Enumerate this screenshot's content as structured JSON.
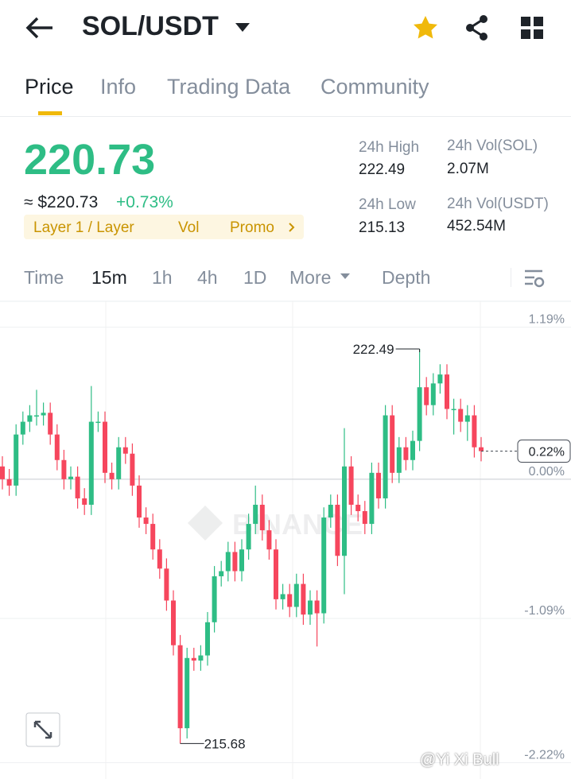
{
  "header": {
    "pair": "SOL/USDT"
  },
  "tabs": [
    "Price",
    "Info",
    "Trading Data",
    "Community"
  ],
  "ticker": {
    "price": "220.73",
    "approx": "≈ $220.73",
    "change": "+0.73%",
    "tags": [
      "Layer 1 / Layer",
      "Vol",
      "Promo"
    ],
    "stats": [
      {
        "label": "24h High",
        "value": "222.49"
      },
      {
        "label": "24h Vol(SOL)",
        "value": "2.07M"
      },
      {
        "label": "24h Low",
        "value": "215.13"
      },
      {
        "label": "24h Vol(USDT)",
        "value": "452.54M"
      }
    ]
  },
  "intervals": [
    "Time",
    "15m",
    "1h",
    "4h",
    "1D",
    "More",
    "Depth"
  ],
  "chart": {
    "type": "candlestick",
    "yticks": [
      {
        "value": 1.19,
        "label": "1.19%"
      },
      {
        "value": 0,
        "label": "0.00%"
      },
      {
        "value": -1.09,
        "label": "-1.09%"
      },
      {
        "value": -2.22,
        "label": "-2.22%"
      }
    ],
    "ylim": [
      -2.36,
      1.3
    ],
    "open": [
      0.1,
      0,
      -0.05,
      0.35,
      0.45,
      0.5,
      0.5,
      0.52,
      0.35,
      0.15,
      0,
      0.02,
      -0.15,
      -0.2,
      0.45,
      0.45,
      0.05,
      0,
      0.25,
      0.2,
      -0.05,
      -0.3,
      -0.35,
      -0.55,
      -0.7,
      -0.95,
      -1.3,
      -1.95,
      -1.4,
      -1.42,
      -1.38,
      -1.12,
      -0.76,
      -0.72,
      -0.57,
      -0.72,
      -0.55,
      -0.35,
      -0.2,
      -0.4,
      -0.55,
      -0.94,
      -0.9,
      -1,
      -0.82,
      -1.06,
      -0.95,
      -1.05,
      -0.3,
      -0.2,
      -0.6,
      0.1,
      -0.2,
      -0.25,
      -0.35,
      0.05,
      -0.15,
      0.5,
      0.05,
      0.25,
      0.15,
      0.3,
      0.72,
      0.58,
      0.75,
      0.82,
      0.55,
      0.55,
      0.45,
      0.5,
      0.25
    ],
    "high": [
      0.18,
      0.08,
      0.43,
      0.53,
      0.58,
      0.7,
      0.6,
      0.6,
      0.43,
      0.23,
      0.1,
      0.1,
      -0.07,
      0.73,
      0.53,
      0.53,
      0.13,
      0.33,
      0.33,
      0.28,
      0.03,
      -0.22,
      -0.27,
      -0.47,
      -0.62,
      -0.87,
      -1.22,
      -1.32,
      -1.32,
      -1.3,
      -1.04,
      -0.68,
      -0.64,
      -0.49,
      -0.49,
      -0.47,
      -0.27,
      -0.05,
      -0.12,
      -0.32,
      -0.47,
      -0.82,
      -0.82,
      -0.74,
      -0.74,
      -0.87,
      -0.87,
      -0.22,
      -0.12,
      -0.12,
      0.4,
      0.18,
      -0.12,
      -0.17,
      0.13,
      0.13,
      0.58,
      0.58,
      0.33,
      0.33,
      0.38,
      1.02,
      0.8,
      0.83,
      0.9,
      0.9,
      0.63,
      0.63,
      0.58,
      0.58,
      0.33
    ],
    "low": [
      -0.08,
      -0.13,
      -0.13,
      0.27,
      0.37,
      0.42,
      0.42,
      0.27,
      0.07,
      -0.08,
      -0.08,
      -0.23,
      -0.28,
      -0.28,
      0.37,
      -0.03,
      -0.08,
      -0.08,
      0.12,
      -0.13,
      -0.38,
      -0.43,
      -0.63,
      -0.78,
      -1.03,
      -1.38,
      -2.07,
      -2.03,
      -1.5,
      -1.5,
      -1.46,
      -1.2,
      -0.84,
      -0.8,
      -0.8,
      -0.8,
      -0.63,
      -0.43,
      -0.48,
      -0.63,
      -1.02,
      -1.02,
      -1.08,
      -1.08,
      -1.14,
      -1.14,
      -1.31,
      -1.13,
      -0.38,
      -0.68,
      -0.9,
      -0.28,
      -0.33,
      -0.43,
      -0.43,
      -0.23,
      -0.23,
      -0.03,
      -0.03,
      0.07,
      0.07,
      0.22,
      0.5,
      0.5,
      0.67,
      0.47,
      0.35,
      0.37,
      0.3,
      0.17,
      0.14
    ],
    "close": [
      0,
      -0.05,
      0.35,
      0.45,
      0.5,
      0.5,
      0.52,
      0.35,
      0.15,
      0,
      0.02,
      -0.15,
      -0.2,
      0.45,
      0.45,
      0.05,
      0,
      0.25,
      0.2,
      -0.05,
      -0.3,
      -0.35,
      -0.55,
      -0.7,
      -0.95,
      -1.3,
      -1.95,
      -1.4,
      -1.42,
      -1.38,
      -1.12,
      -0.76,
      -0.72,
      -0.57,
      -0.72,
      -0.55,
      -0.35,
      -0.2,
      -0.4,
      -0.55,
      -0.94,
      -0.9,
      -1,
      -0.82,
      -1.06,
      -0.95,
      -1.05,
      -0.3,
      -0.2,
      -0.6,
      0.1,
      -0.2,
      -0.25,
      -0.35,
      0.05,
      -0.15,
      0.5,
      0.05,
      0.25,
      0.15,
      0.3,
      0.72,
      0.58,
      0.75,
      0.82,
      0.55,
      0.55,
      0.45,
      0.5,
      0.25,
      0.22
    ],
    "up_color": "#2ebd85",
    "down_color": "#f6465d",
    "annotations": [
      {
        "label": "222.49",
        "index": 61,
        "value": 1.02
      },
      {
        "label": "215.68",
        "index": 26,
        "value": -2.07
      }
    ],
    "last_label": "0.22%",
    "watermark": "BINANCE",
    "credit": "@Yi Xi Bull"
  }
}
